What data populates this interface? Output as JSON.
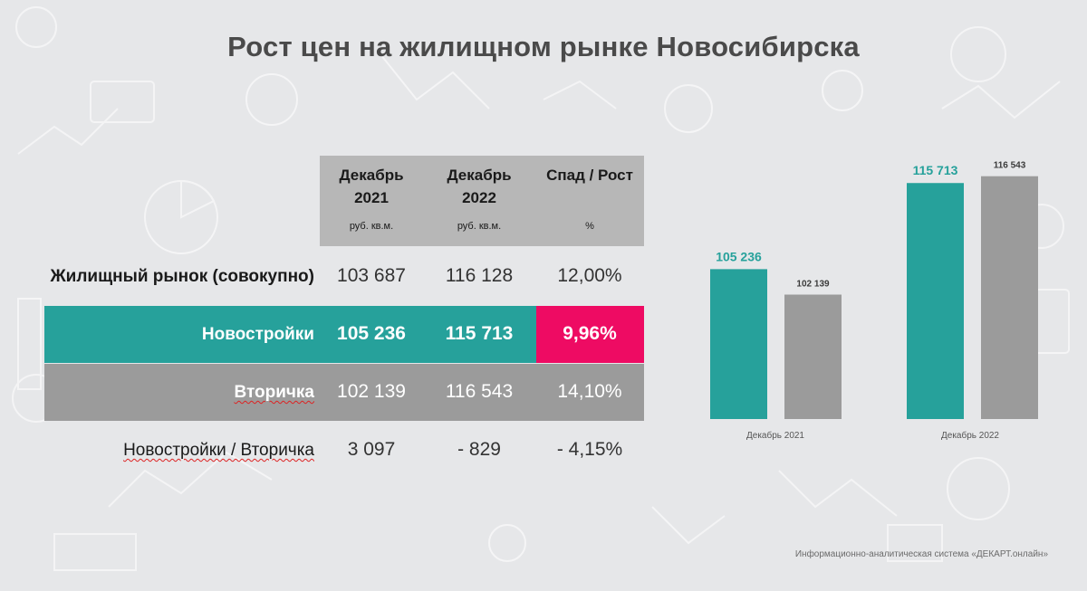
{
  "title": "Рост цен на жилищном рынке Новосибирска",
  "table": {
    "columns": [
      {
        "line1": "Декабрь",
        "line2": "2021",
        "unit": "руб. кв.м."
      },
      {
        "line1": "Декабрь",
        "line2": "2022",
        "unit": "руб. кв.м."
      },
      {
        "line1": "Спад / Рост",
        "line2": "",
        "unit": "%"
      }
    ],
    "rows": [
      {
        "label": "Жилищный рынок (совокупно)",
        "v2021": "103 687",
        "v2022": "116 128",
        "change": "12,00%"
      },
      {
        "label": "Новостройки",
        "v2021": "105 236",
        "v2022": "115 713",
        "change": "9,96%"
      },
      {
        "label": "Вторичка",
        "v2021": "102 139",
        "v2022": "116 543",
        "change": "14,10%"
      },
      {
        "label": "Новостройки / Вторичка",
        "v2021": "3 097",
        "v2022": "- 829",
        "change": "- 4,15%"
      }
    ]
  },
  "chart_data": {
    "type": "bar",
    "title": "",
    "categories": [
      "Декабрь 2021",
      "Декабрь 2022"
    ],
    "series": [
      {
        "name": "Новостройки",
        "color": "#26a19b",
        "values": [
          105236,
          115713
        ],
        "labels": [
          "105 236",
          "115 713"
        ]
      },
      {
        "name": "Вторичка",
        "color": "#9b9b9b",
        "values": [
          102139,
          116543
        ],
        "labels": [
          "102 139",
          "116 543"
        ]
      }
    ],
    "ylim": [
      87000,
      117500
    ],
    "xlabel": "",
    "ylabel": "",
    "grid": false
  },
  "colors": {
    "accent_teal": "#26a19b",
    "accent_pink": "#ee0b63",
    "gray": "#9b9b9b",
    "header_gray": "#b7b7b7"
  },
  "footer": "Информационно-аналитическая система «ДЕКАРТ.онлайн»"
}
